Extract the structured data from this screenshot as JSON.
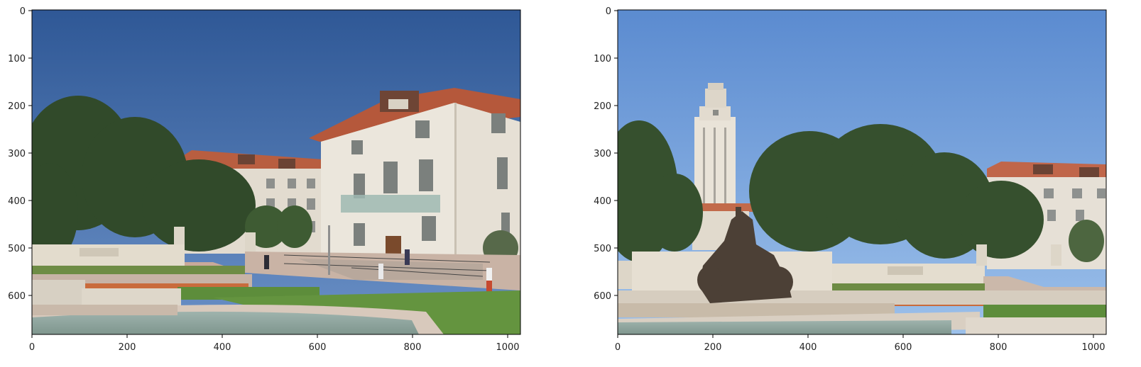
{
  "figure": {
    "panels": [
      {
        "id": "left",
        "x_ticks": [
          "0",
          "200",
          "400",
          "600",
          "800",
          "1000"
        ],
        "y_ticks": [
          "0",
          "100",
          "200",
          "300",
          "400",
          "500",
          "600"
        ],
        "colors": {
          "sky_top": "#2f5896",
          "sky_bottom": "#5f87c0",
          "stone": "#e3ddd2",
          "roof": "#b65a3d",
          "tree": "#314a2a",
          "grass": "#5a8b3a",
          "water": "#8fa6a0"
        }
      },
      {
        "id": "right",
        "x_ticks": [
          "0",
          "200",
          "400",
          "600",
          "800",
          "1000"
        ],
        "y_ticks": [
          "0",
          "100",
          "200",
          "300",
          "400",
          "500",
          "600"
        ],
        "colors": {
          "sky_top": "#5e8ed2",
          "sky_bottom": "#8db4e6",
          "stone": "#e6e0d6",
          "roof": "#c0664a",
          "tree": "#36502e",
          "grass": "#5b8c3b",
          "fountain": "#4c4036"
        }
      }
    ]
  }
}
